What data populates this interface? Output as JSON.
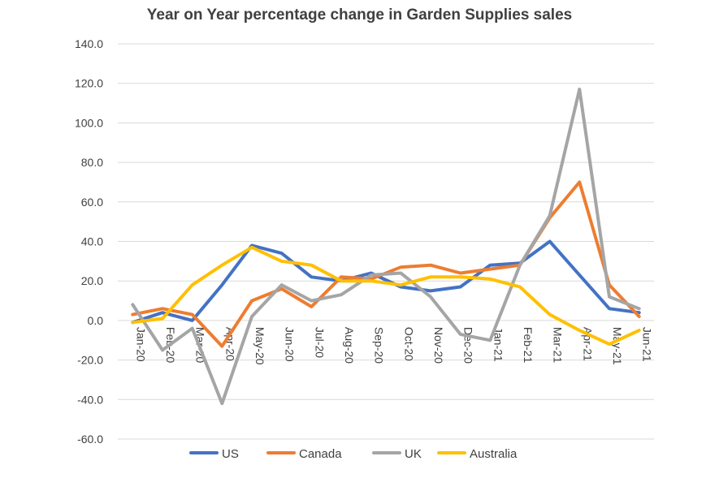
{
  "chart_data": {
    "type": "line",
    "title": "Year on Year percentage change in Garden Supplies sales",
    "xlabel": "",
    "ylabel": "",
    "categories": [
      "Jan-20",
      "Feb-20",
      "Mar-20",
      "Apr-20",
      "May-20",
      "Jun-20",
      "Jul-20",
      "Aug-20",
      "Sep-20",
      "Oct-20",
      "Nov-20",
      "Dec-20",
      "Jan-21",
      "Feb-21",
      "Mar-21",
      "Apr-21",
      "May-21",
      "Jun-21"
    ],
    "ylim": [
      -60,
      140
    ],
    "yticks": [
      "140.0",
      "120.0",
      "100.0",
      "80.0",
      "60.0",
      "40.0",
      "20.0",
      "0.0",
      "-20.0",
      "-40.0",
      "-60.0"
    ],
    "grid": true,
    "legend_position": "bottom",
    "series": [
      {
        "name": "US",
        "color": "#4472C4",
        "values": [
          -1,
          4,
          0,
          18,
          38,
          34,
          22,
          20,
          24,
          17,
          15,
          17,
          28,
          29,
          40,
          23,
          6,
          4
        ]
      },
      {
        "name": "Canada",
        "color": "#ED7D31",
        "values": [
          3,
          6,
          3,
          -13,
          10,
          16,
          7,
          22,
          21,
          27,
          28,
          24,
          26,
          28,
          52,
          70,
          18,
          2
        ]
      },
      {
        "name": "UK",
        "color": "#A5A5A5",
        "values": [
          8,
          -15,
          -4,
          -42,
          2,
          18,
          10,
          13,
          23,
          24,
          12,
          -7,
          -10,
          28,
          53,
          117,
          12,
          6
        ]
      },
      {
        "name": "Australia",
        "color": "#FFC000",
        "values": [
          -1,
          1,
          18,
          28,
          37,
          30,
          28,
          20,
          20,
          18,
          22,
          22,
          21,
          17,
          3,
          -5,
          -12,
          -5
        ]
      }
    ]
  }
}
